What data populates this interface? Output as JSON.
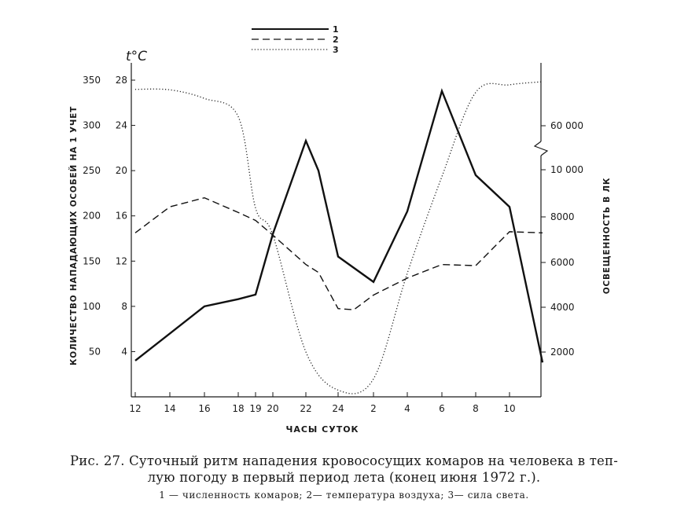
{
  "chart_data": {
    "type": "line",
    "xlabel": "ЧАСЫ СУТОК",
    "x_tick_labels": [
      "12",
      "14",
      "16",
      "18",
      "19",
      "20",
      "22",
      "24",
      "2",
      "4",
      "6",
      "8",
      "10"
    ],
    "y_left_outer_label": "КОЛИЧЕСТВО НАПАДАЮЩИХ ОСОБЕЙ НА 1 УЧЕТ",
    "y_left_outer_ticks": [
      "350",
      "300",
      "250",
      "200",
      "150",
      "100",
      "50"
    ],
    "y_left_outer_range": [
      0,
      350
    ],
    "y_left_inner_label": "t°C",
    "y_left_inner_ticks": [
      "28",
      "24",
      "20",
      "16",
      "12",
      "8",
      "4"
    ],
    "y_left_inner_range": [
      0,
      28
    ],
    "y_right_label": "ОСВЕЩЕННОСТЬ В ЛК",
    "y_right_ticks": [
      "60000",
      "10000",
      "8000",
      "6000",
      "4000",
      "2000"
    ],
    "y_right_note": "broken axis between 10000 and 60000",
    "legend_position": "top-center",
    "series": [
      {
        "name": "1",
        "axis": "left-outer",
        "style": "solid",
        "x": [
          "12",
          "14",
          "16",
          "18",
          "19",
          "20",
          "22",
          "23",
          "24",
          "2",
          "4",
          "6",
          "8",
          "10",
          "12"
        ],
        "values": [
          40,
          70,
          100,
          108,
          113,
          180,
          283,
          250,
          155,
          127,
          205,
          338,
          245,
          210,
          38
        ]
      },
      {
        "name": "2",
        "axis": "left-inner",
        "style": "dashed",
        "x": [
          "12",
          "14",
          "16",
          "18",
          "19",
          "20",
          "22",
          "23",
          "24",
          "1",
          "2",
          "4",
          "6",
          "8",
          "10",
          "12"
        ],
        "values": [
          14.5,
          16.8,
          17.6,
          16.3,
          15.6,
          14.3,
          11.7,
          11.0,
          7.8,
          7.7,
          9.0,
          10.5,
          11.7,
          11.6,
          14.6,
          14.5
        ]
      },
      {
        "name": "3",
        "axis": "right",
        "style": "dotted",
        "x": [
          "12",
          "14",
          "16",
          "18",
          "19",
          "20",
          "22",
          "24",
          "2",
          "4",
          "6",
          "8",
          "10",
          "12"
        ],
        "values": [
          63000,
          62700,
          57000,
          45000,
          8400,
          7200,
          2000,
          300,
          800,
          5500,
          9800,
          61000,
          66000,
          69000
        ]
      }
    ]
  },
  "caption": {
    "line1": "Рис. 27. Суточный ритм нападения кровососущих комаров на человека в теп-",
    "line2": "лую погоду в первый период лета (конец июня 1972 г.).",
    "legend": "1 — численность комаров;  2— температура воздуха;  3— сила света."
  }
}
